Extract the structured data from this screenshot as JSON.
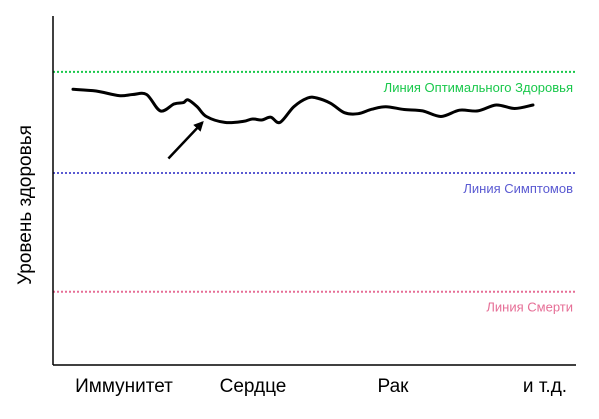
{
  "chart_data": {
    "type": "line",
    "ylabel": "Уровень здоровья",
    "categories": [
      "Иммунитет",
      "Сердце",
      "Рак",
      "и т.д."
    ],
    "reference_lines": [
      {
        "name": "Линия Оптимального Здоровья",
        "level": 0.84,
        "color": "#19c84b"
      },
      {
        "name": "Линия Симптомов",
        "level": 0.55,
        "color": "#5a5ad2"
      },
      {
        "name": "Линия Смерти",
        "level": 0.21,
        "color": "#e66e96"
      }
    ],
    "series": [
      {
        "color": "#000000",
        "x": [
          0,
          0.05,
          0.1,
          0.13,
          0.16,
          0.19,
          0.22,
          0.24,
          0.25,
          0.27,
          0.29,
          0.33,
          0.37,
          0.39,
          0.41,
          0.43,
          0.45,
          0.48,
          0.51,
          0.53,
          0.56,
          0.59,
          0.62,
          0.65,
          0.68,
          0.72,
          0.76,
          0.8,
          0.84,
          0.88,
          0.92,
          0.96,
          1.0
        ],
        "values": [
          0.79,
          0.785,
          0.772,
          0.775,
          0.775,
          0.728,
          0.748,
          0.752,
          0.76,
          0.74,
          0.712,
          0.695,
          0.698,
          0.705,
          0.702,
          0.71,
          0.695,
          0.74,
          0.765,
          0.765,
          0.75,
          0.723,
          0.72,
          0.733,
          0.74,
          0.732,
          0.728,
          0.712,
          0.73,
          0.728,
          0.745,
          0.735,
          0.745
        ]
      }
    ],
    "annotation": {
      "type": "arrow",
      "x": 0.29,
      "value": 0.712
    }
  }
}
